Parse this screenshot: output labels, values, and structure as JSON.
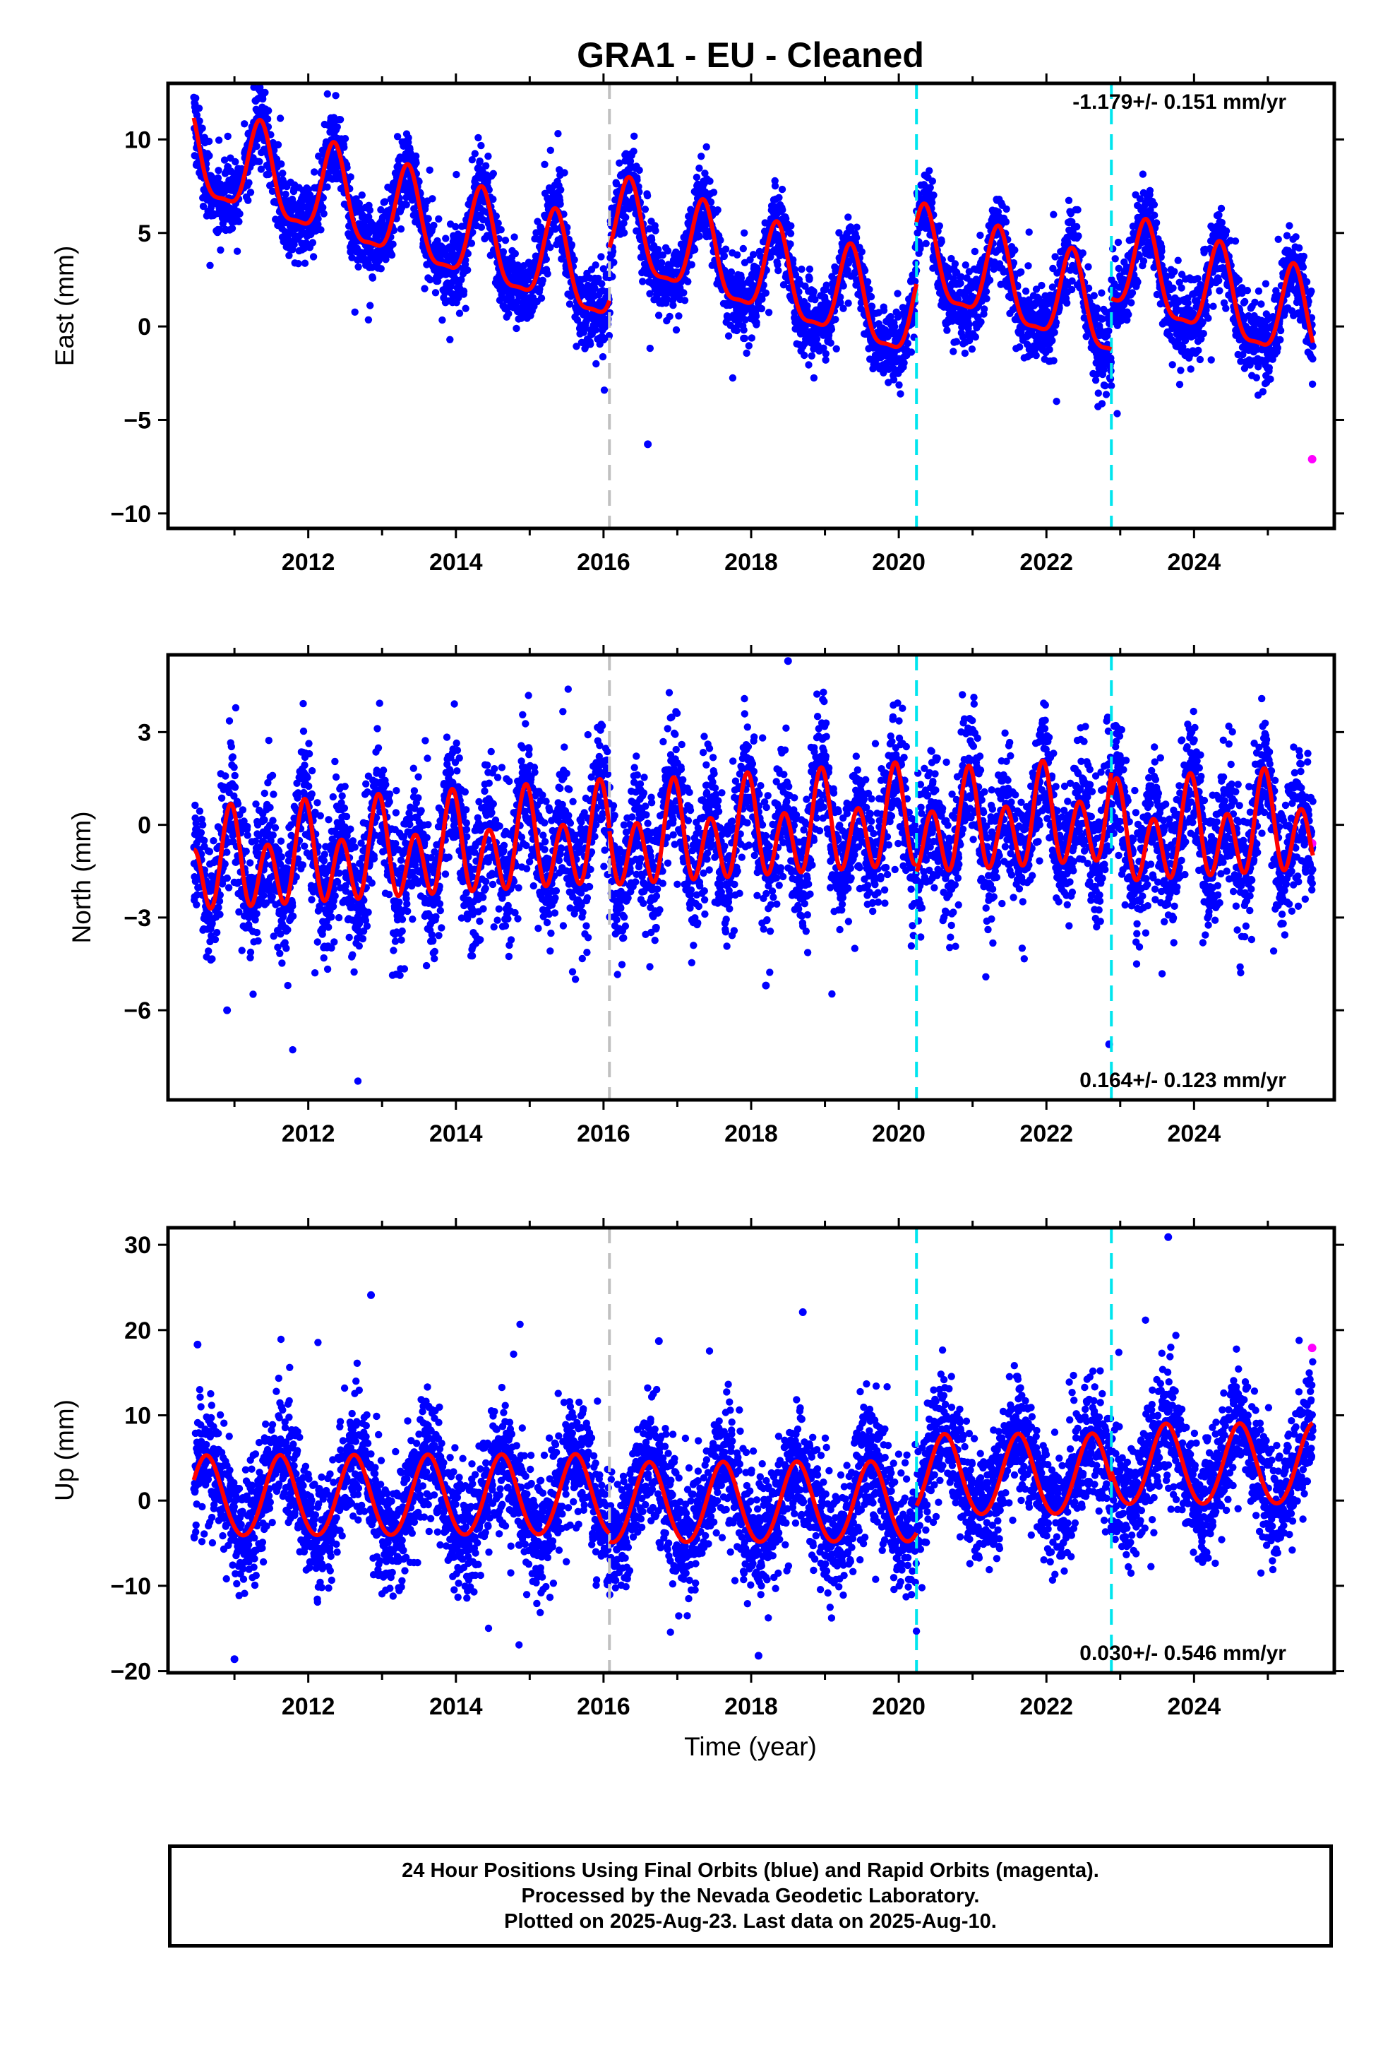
{
  "figure": {
    "title": "GRA1  - EU - Cleaned",
    "footer_lines": [
      "24 Hour Positions Using Final Orbits (blue) and Rapid Orbits (magenta).",
      "Processed by the Nevada Geodetic Laboratory.",
      "Plotted on 2025-Aug-23. Last data on 2025-Aug-10."
    ],
    "xlabel": "Time (year)"
  },
  "colors": {
    "final_orbits": "#0000ff",
    "rapid_orbits": "#ff00ff",
    "model_fit": "#ff0000",
    "equipment_change": "#c0c0c0",
    "earthquake_event": "#00e5ee"
  },
  "chart_data": [
    {
      "type": "scatter",
      "panel": "east",
      "ylabel": "East (mm)",
      "rate_label": "-1.179+/- 0.151 mm/yr",
      "rate_position": "top-right",
      "xlim": [
        2010.1,
        2025.9
      ],
      "ylim": [
        -10.8,
        13.0
      ],
      "xticks": [
        2012,
        2014,
        2016,
        2018,
        2020,
        2022,
        2024
      ],
      "yticks": [
        -10,
        -5,
        0,
        5,
        10
      ],
      "vertical_lines": [
        {
          "x": 2016.08,
          "kind": "equipment_change",
          "style": "dashed",
          "color": "#c0c0c0"
        },
        {
          "x": 2020.24,
          "kind": "event",
          "style": "dashed",
          "color": "#00e5ee"
        },
        {
          "x": 2022.88,
          "kind": "event",
          "style": "dashed",
          "color": "#00e5ee"
        }
      ],
      "model_segments": [
        {
          "x0": 2010.45,
          "x1": 2016.08,
          "offset": 9.0,
          "rate": -1.18,
          "annual": 2.4,
          "semiannual": 0.7,
          "phase": 0.35
        },
        {
          "x0": 2016.08,
          "x1": 2020.24,
          "offset": 5.2,
          "rate": -1.18,
          "annual": 2.4,
          "semiannual": 0.7,
          "phase": 0.35
        },
        {
          "x0": 2020.24,
          "x1": 2022.88,
          "offset": 3.6,
          "rate": -1.18,
          "annual": 2.4,
          "semiannual": 0.7,
          "phase": 0.35
        },
        {
          "x0": 2022.88,
          "x1": 2025.61,
          "offset": 3.2,
          "rate": -1.18,
          "annual": 2.4,
          "semiannual": 0.7,
          "phase": 0.35
        }
      ],
      "scatter_noise_mm": 1.0,
      "rapid_points": [
        {
          "x": 2025.6,
          "y": -7.1
        }
      ],
      "notable_points": [
        {
          "x": 2011.35,
          "y": 12.6
        },
        {
          "x": 2017.35,
          "y": 7.2
        },
        {
          "x": 2023.35,
          "y": 3.9
        },
        {
          "x": 2016.6,
          "y": -6.3
        }
      ]
    },
    {
      "type": "scatter",
      "panel": "north",
      "ylabel": "North (mm)",
      "rate_label": "0.164+/- 0.123 mm/yr",
      "rate_position": "bottom-right",
      "xlim": [
        2010.1,
        2025.9
      ],
      "ylim": [
        -8.9,
        5.5
      ],
      "xticks": [
        2012,
        2014,
        2016,
        2018,
        2020,
        2022,
        2024
      ],
      "yticks": [
        -6,
        -3,
        0,
        3
      ],
      "vertical_lines": [
        {
          "x": 2016.08,
          "kind": "equipment_change",
          "style": "dashed",
          "color": "#c0c0c0"
        },
        {
          "x": 2020.24,
          "kind": "event",
          "style": "dashed",
          "color": "#00e5ee"
        },
        {
          "x": 2022.88,
          "kind": "event",
          "style": "dashed",
          "color": "#00e5ee"
        }
      ],
      "model_segments": [
        {
          "x0": 2010.45,
          "x1": 2016.08,
          "offset": -1.4,
          "rate": 0.16,
          "annual": 0.7,
          "semiannual": 1.3,
          "phase": 0.95
        },
        {
          "x0": 2016.08,
          "x1": 2020.24,
          "offset": -0.6,
          "rate": 0.16,
          "annual": 0.7,
          "semiannual": 1.3,
          "phase": 0.95
        },
        {
          "x0": 2020.24,
          "x1": 2022.88,
          "offset": -0.2,
          "rate": 0.16,
          "annual": 0.7,
          "semiannual": 1.3,
          "phase": 0.95
        },
        {
          "x0": 2022.88,
          "x1": 2025.61,
          "offset": -0.5,
          "rate": 0.16,
          "annual": 0.7,
          "semiannual": 1.3,
          "phase": 0.95
        }
      ],
      "scatter_noise_mm": 1.05,
      "rapid_points": [
        {
          "x": 2025.6,
          "y": -0.6
        }
      ],
      "notable_points": [
        {
          "x": 2018.5,
          "y": 5.3
        },
        {
          "x": 2022.85,
          "y": -7.1
        },
        {
          "x": 2018.2,
          "y": -5.2
        },
        {
          "x": 2010.9,
          "y": -6.0
        }
      ]
    },
    {
      "type": "scatter",
      "panel": "up",
      "ylabel": "Up (mm)",
      "rate_label": "0.030+/- 0.546 mm/yr",
      "rate_position": "bottom-right",
      "xlim": [
        2010.1,
        2025.9
      ],
      "ylim": [
        -20.2,
        32.0
      ],
      "xticks": [
        2012,
        2014,
        2016,
        2018,
        2020,
        2022,
        2024
      ],
      "yticks": [
        -20,
        -10,
        0,
        10,
        20,
        30
      ],
      "vertical_lines": [
        {
          "x": 2016.08,
          "kind": "equipment_change",
          "style": "dashed",
          "color": "#c0c0c0"
        },
        {
          "x": 2020.24,
          "kind": "event",
          "style": "dashed",
          "color": "#00e5ee"
        },
        {
          "x": 2022.88,
          "kind": "event",
          "style": "dashed",
          "color": "#00e5ee"
        }
      ],
      "model_segments": [
        {
          "x0": 2010.45,
          "x1": 2016.08,
          "offset": 0.3,
          "rate": 0.03,
          "annual": 4.7,
          "semiannual": 0.3,
          "phase": 0.62
        },
        {
          "x0": 2016.08,
          "x1": 2020.24,
          "offset": -0.5,
          "rate": 0.03,
          "annual": 4.7,
          "semiannual": 0.3,
          "phase": 0.62
        },
        {
          "x0": 2020.24,
          "x1": 2022.88,
          "offset": 2.8,
          "rate": 0.03,
          "annual": 4.7,
          "semiannual": 0.3,
          "phase": 0.62
        },
        {
          "x0": 2022.88,
          "x1": 2025.61,
          "offset": 4.0,
          "rate": 0.03,
          "annual": 4.7,
          "semiannual": 0.3,
          "phase": 0.62
        }
      ],
      "scatter_noise_mm": 3.4,
      "rapid_points": [
        {
          "x": 2025.6,
          "y": 17.9
        }
      ],
      "notable_points": [
        {
          "x": 2012.85,
          "y": 24.1
        },
        {
          "x": 2023.65,
          "y": 30.9
        },
        {
          "x": 2018.7,
          "y": 22.1
        },
        {
          "x": 2016.75,
          "y": 18.7
        },
        {
          "x": 2010.5,
          "y": 18.3
        },
        {
          "x": 2011.0,
          "y": -18.6
        },
        {
          "x": 2018.1,
          "y": -18.2
        }
      ]
    }
  ]
}
